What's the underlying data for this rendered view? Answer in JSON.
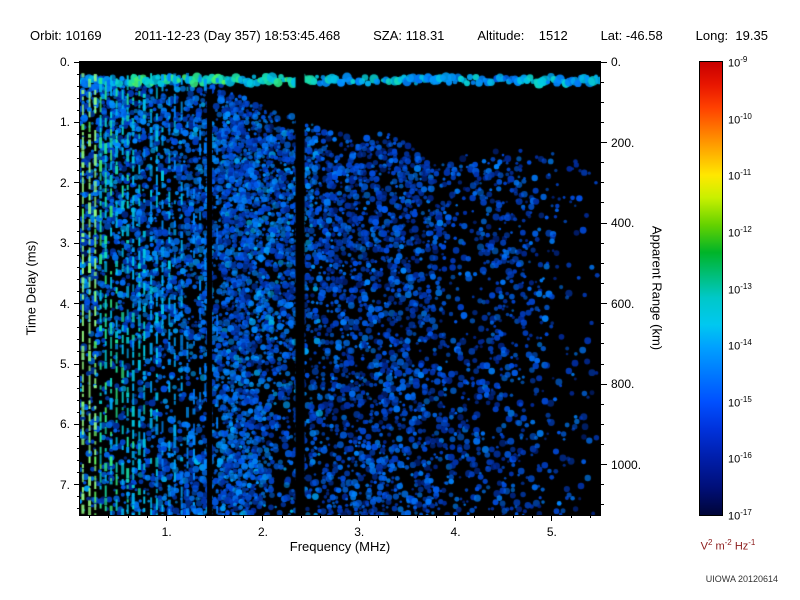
{
  "header": {
    "items": [
      "Orbit: 10169",
      "2011-12-23 (Day 357) 18:53:45.468",
      "SZA: 118.31",
      "Altitude:    1512",
      "Lat: -46.58",
      "Long:  19.35"
    ]
  },
  "chart_data": {
    "type": "heatmap",
    "title": "",
    "xlabel": "Frequency (MHz)",
    "ylabel_left": "Time Delay (ms)",
    "ylabel_right": "Apparent Range (km)",
    "x_range_mhz": [
      0.1,
      5.5
    ],
    "y_range_ms": [
      0,
      7.5
    ],
    "x_ticks": {
      "values": [
        1,
        2,
        3,
        4,
        5
      ],
      "labels": [
        "1.",
        "2.",
        "3.",
        "4.",
        "5."
      ],
      "minor_step": 0.2
    },
    "y_ticks": {
      "values": [
        0,
        1,
        2,
        3,
        4,
        5,
        6,
        7
      ],
      "labels": [
        "0.",
        "1.",
        "2.",
        "3.",
        "4.",
        "5.",
        "6.",
        "7."
      ],
      "minor_step": 0.2
    },
    "right_axis": {
      "values": [
        0,
        200,
        400,
        600,
        800,
        1000
      ],
      "labels": [
        "0.",
        "200.",
        "400.",
        "600.",
        "800.",
        "1000."
      ],
      "minor_step": 50,
      "km_per_ms": 150
    },
    "colorbar": {
      "scale_base": "10",
      "exponents": [
        "-9",
        "-10",
        "-11",
        "-12",
        "-13",
        "-14",
        "-15",
        "-16",
        "-17"
      ],
      "gradient_stops": [
        [
          0.0,
          "#c80000"
        ],
        [
          0.05,
          "#e81600"
        ],
        [
          0.1,
          "#ff4000"
        ],
        [
          0.15,
          "#ff7800"
        ],
        [
          0.2,
          "#ffb000"
        ],
        [
          0.25,
          "#ffe800"
        ],
        [
          0.3,
          "#c8f000"
        ],
        [
          0.36,
          "#64d200"
        ],
        [
          0.42,
          "#00b428"
        ],
        [
          0.47,
          "#00be78"
        ],
        [
          0.52,
          "#00c8c8"
        ],
        [
          0.58,
          "#00c8f0"
        ],
        [
          0.63,
          "#00a0ff"
        ],
        [
          0.69,
          "#0078ff"
        ],
        [
          0.75,
          "#0050ff"
        ],
        [
          0.81,
          "#0032dc"
        ],
        [
          0.875,
          "#001eaa"
        ],
        [
          0.94,
          "#000f78"
        ],
        [
          1.0,
          "#000538"
        ]
      ]
    },
    "features": {
      "seed": 20120614,
      "surface_band": {
        "delay_ms": 0.3
      },
      "gap_freqs_mhz": [
        2.38,
        1.44
      ],
      "harmonics": {
        "f_start": 0.13,
        "f_end": 1.56,
        "spacing_mhz": 0.06
      },
      "noise_max_freq_mhz": 4.6
    }
  },
  "unit": {
    "v": "V",
    "v_exp": "2",
    "m": "m",
    "m_exp": "-2",
    "hz": "Hz",
    "hz_exp": "-1"
  },
  "credit": "UIOWA 20120614"
}
